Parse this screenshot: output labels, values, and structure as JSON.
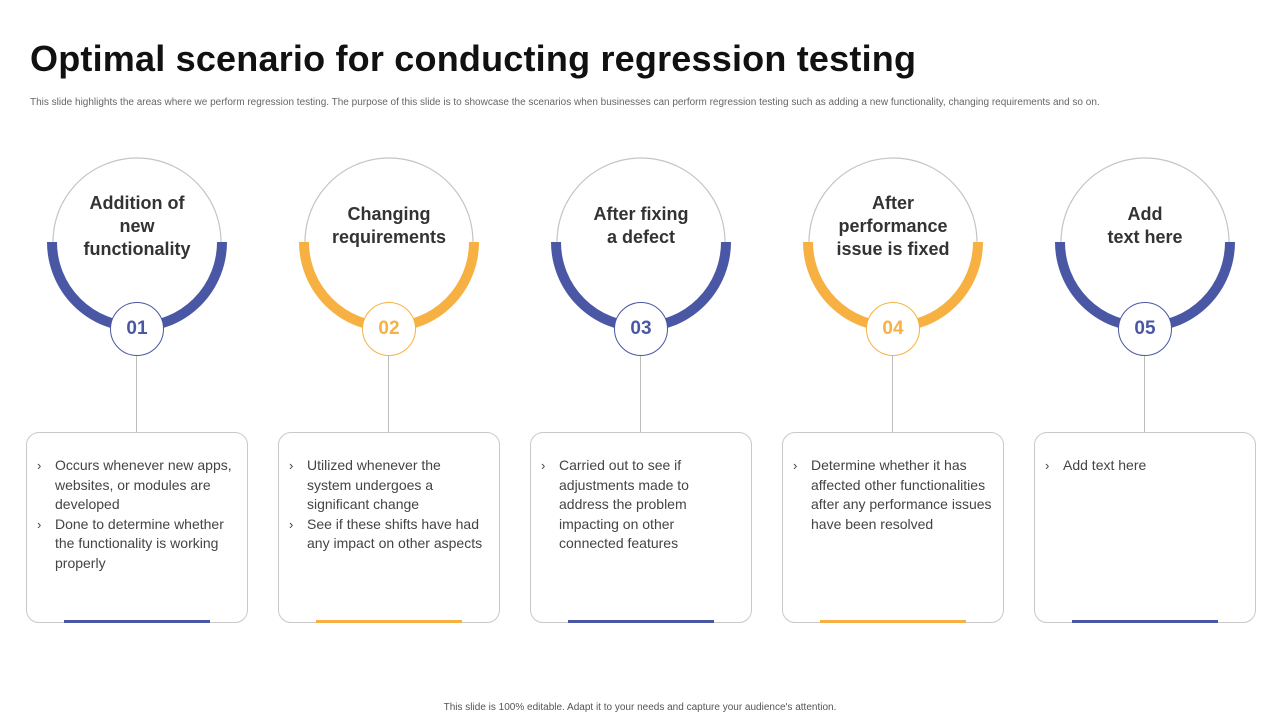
{
  "title": "Optimal scenario for conducting regression testing",
  "subtitle": "This slide highlights the areas where we perform regression testing. The purpose of this slide is to showcase the scenarios when businesses can perform regression testing such as adding a new functionality, changing requirements and so on.",
  "footer": "This slide is 100% editable. Adapt it to your needs and capture your audience's attention.",
  "colors": {
    "blue": "#4a57a4",
    "orange": "#f7b143",
    "grey_line": "#c4c4c4"
  },
  "cards": [
    {
      "number": "01",
      "label_lines": [
        "Addition of",
        "new",
        "functionality"
      ],
      "color": "#4a57a4",
      "bullets": [
        "Occurs whenever new apps, websites, or modules are developed",
        "Done to determine whether the functionality is working properly"
      ]
    },
    {
      "number": "02",
      "label_lines": [
        "Changing",
        "requirements"
      ],
      "color": "#f7b143",
      "bullets": [
        "Utilized whenever the system undergoes a significant change",
        "See if these shifts have had any impact on other aspects"
      ]
    },
    {
      "number": "03",
      "label_lines": [
        "After fixing",
        "a defect"
      ],
      "color": "#4a57a4",
      "bullets": [
        "Carried out to see if adjustments made to address the problem impacting on other connected features"
      ]
    },
    {
      "number": "04",
      "label_lines": [
        "After",
        "performance",
        "issue is fixed"
      ],
      "color": "#f7b143",
      "bullets": [
        "Determine whether it has affected other functionalities after any performance issues have been resolved"
      ]
    },
    {
      "number": "05",
      "label_lines": [
        "Add",
        "text here"
      ],
      "color": "#4a57a4",
      "bullets": [
        "Add text here"
      ]
    }
  ]
}
